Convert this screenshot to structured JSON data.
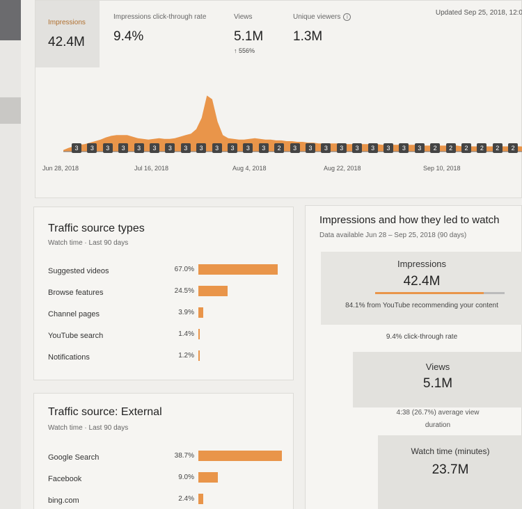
{
  "metrics": {
    "impressions": {
      "label": "Impressions",
      "value": "42.4M"
    },
    "ctr": {
      "label": "Impressions click-through rate",
      "value": "9.4%"
    },
    "views": {
      "label": "Views",
      "value": "5.1M",
      "growth": "↑ 556%"
    },
    "unique": {
      "label": "Unique viewers",
      "value": "1.3M",
      "icon": "info-icon"
    },
    "updated": "Updated Sep 25, 2018, 12:0"
  },
  "chart_data": {
    "type": "area",
    "title": "",
    "x_labels": [
      "Jun 28, 2018",
      "Jul 16, 2018",
      "Aug 4, 2018",
      "Aug 22, 2018",
      "Sep 10, 2018"
    ],
    "x_range": [
      "Jun 28, 2018",
      "Sep 25, 2018"
    ],
    "series": [
      {
        "name": "Impressions",
        "values": [
          2,
          5,
          7,
          9,
          10,
          12,
          14,
          16,
          19,
          21,
          22,
          22,
          22,
          20,
          18,
          17,
          16,
          17,
          18,
          17,
          17,
          18,
          20,
          22,
          24,
          30,
          45,
          75,
          70,
          40,
          22,
          18,
          17,
          16,
          16,
          17,
          18,
          17,
          16,
          16,
          15,
          15,
          14,
          14,
          13,
          13,
          12,
          12,
          11,
          11,
          11,
          11,
          11,
          10,
          10,
          10,
          10,
          10,
          10,
          10,
          9,
          9,
          9,
          9,
          9,
          9,
          9,
          8,
          8,
          8,
          8,
          8,
          8,
          8,
          8,
          7,
          7,
          7,
          7,
          7,
          7,
          7,
          7,
          7,
          7,
          7,
          7,
          6,
          6,
          6
        ],
        "color": "#e9954a"
      }
    ],
    "ylim": [
      0,
      80
    ],
    "markers": [
      "3",
      "3",
      "3",
      "3",
      "3",
      "3",
      "3",
      "3",
      "3",
      "3",
      "3",
      "3",
      "3",
      "2",
      "3",
      "3",
      "3",
      "3",
      "3",
      "3",
      "3",
      "3",
      "3",
      "2",
      "2",
      "2",
      "2",
      "2",
      "2"
    ]
  },
  "traffic_types": {
    "title": "Traffic source types",
    "subtitle": "Watch time · Last 90 days",
    "rows": [
      {
        "label": "Suggested videos",
        "pct": "67.0%",
        "value": 67.0
      },
      {
        "label": "Browse features",
        "pct": "24.5%",
        "value": 24.5
      },
      {
        "label": "Channel pages",
        "pct": "3.9%",
        "value": 3.9
      },
      {
        "label": "YouTube search",
        "pct": "1.4%",
        "value": 1.4
      },
      {
        "label": "Notifications",
        "pct": "1.2%",
        "value": 1.2
      }
    ]
  },
  "traffic_external": {
    "title": "Traffic source: External",
    "subtitle": "Watch time · Last 90 days",
    "rows": [
      {
        "label": "Google Search",
        "pct": "38.7%",
        "value": 38.7
      },
      {
        "label": "Facebook",
        "pct": "9.0%",
        "value": 9.0
      },
      {
        "label": "bing.com",
        "pct": "2.4%",
        "value": 2.4
      }
    ]
  },
  "funnel": {
    "title": "Impressions and how they led to watch",
    "subtitle": "Data available Jun 28 – Sep 25, 2018 (90 days)",
    "impressions_label": "Impressions",
    "impressions_value": "42.4M",
    "impressions_progress": 0.841,
    "recommend_text": "84.1% from YouTube recommending your content",
    "ctr_text": "9.4% click-through rate",
    "views_label": "Views",
    "views_value": "5.1M",
    "avd_text_1": "4:38 (26.7%) average view",
    "avd_text_2": "duration",
    "watch_label": "Watch time (minutes)",
    "watch_value": "23.7M"
  }
}
